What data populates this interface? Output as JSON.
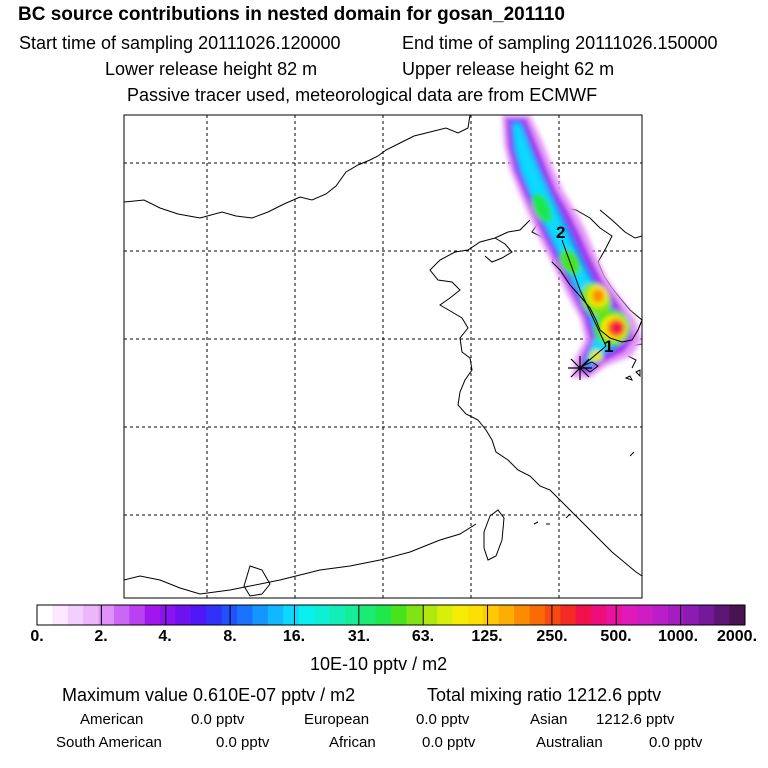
{
  "header": {
    "title": "BC  source contributions in nested domain for gosan_201110",
    "start_time": "Start time of sampling 20111026.120000",
    "end_time": "End time of sampling 20111026.150000",
    "lower_height": "Lower release height   82 m",
    "upper_height": "Upper release height   62 m",
    "tracer_note": "Passive tracer used, meteorological data are from ECMWF"
  },
  "map": {
    "markers": [
      {
        "label": "2"
      },
      {
        "label": "1"
      }
    ]
  },
  "colorbar": {
    "ticks": [
      "0.",
      "2.",
      "4.",
      "8.",
      "16.",
      "31.",
      "63.",
      "125.",
      "250.",
      "500.",
      "1000.",
      "2000."
    ],
    "colors": [
      "#ffffff",
      "#fbe7fe",
      "#f4cffd",
      "#ecb6fb",
      "#df90f9",
      "#cc66f5",
      "#b941f2",
      "#a116ee",
      "#8a14ef",
      "#6e12f2",
      "#4f17f5",
      "#3131f8",
      "#2250fb",
      "#1a73fc",
      "#1596fd",
      "#12b8fd",
      "#0fd8fe",
      "#09f0f0",
      "#0ef0d6",
      "#13eeb9",
      "#17ec98",
      "#1bea73",
      "#1fe84c",
      "#48e31b",
      "#80e414",
      "#b0e70e",
      "#d9ee0a",
      "#f5ed06",
      "#fedf04",
      "#fec904",
      "#fdae03",
      "#fb8c02",
      "#f96b05",
      "#f74a10",
      "#f52a25",
      "#f0104b",
      "#ec0e7c",
      "#e714a1",
      "#df1ab8",
      "#cf1cc3",
      "#bb1ec7",
      "#a41dc1",
      "#8c1bb3",
      "#741998",
      "#5d1675",
      "#48134f"
    ],
    "units": "10E-10 pptv / m2"
  },
  "summary": {
    "max_value": "Maximum value  0.610E-07 pptv / m2",
    "total_mixing": "Total mixing ratio      1212.6 pptv",
    "american_label": "American",
    "american_value": "0.0 pptv",
    "european_label": "European",
    "european_value": "0.0 pptv",
    "asian_label": "Asian",
    "asian_value": "1212.6 pptv",
    "south_american_label": "South American",
    "south_american_value": "0.0 pptv",
    "african_label": "African",
    "african_value": "0.0 pptv",
    "australian_label": "Australian",
    "australian_value": "0.0 pptv"
  }
}
